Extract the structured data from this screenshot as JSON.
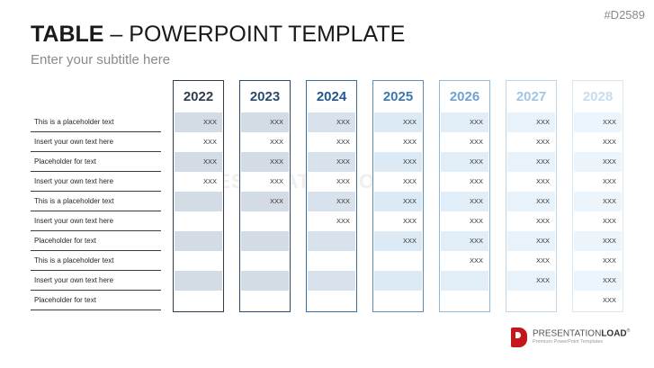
{
  "slide_id": "#D2589",
  "title_bold": "TABLE",
  "title_rest": " – POWERPOINT TEMPLATE",
  "subtitle": "Enter your subtitle here",
  "row_labels": [
    "This is a placeholder text",
    "Insert your own text here",
    "Placeholder for text",
    "Insert your own text here",
    "This is a placeholder text",
    "Insert your own text here",
    "Placeholder for text",
    "This is a placeholder text",
    "Insert your own text here",
    "Placeholder for text"
  ],
  "columns": [
    {
      "year": "2022",
      "year_color": "#2f3d4e",
      "border": "#2f3d4e",
      "shade": "#d3dbe4",
      "cells": [
        "XXX",
        "XXX",
        "XXX",
        "XXX",
        "",
        "",
        "",
        "",
        "",
        ""
      ]
    },
    {
      "year": "2023",
      "year_color": "#2b4a6e",
      "border": "#2b4a6e",
      "shade": "#d3dbe4",
      "cells": [
        "XXX",
        "XXX",
        "XXX",
        "XXX",
        "XXX",
        "",
        "",
        "",
        "",
        ""
      ]
    },
    {
      "year": "2024",
      "year_color": "#24578d",
      "border": "#3c6e9d",
      "shade": "#d7e2ec",
      "cells": [
        "XXX",
        "XXX",
        "XXX",
        "XXX",
        "XXX",
        "XXX",
        "",
        "",
        "",
        ""
      ]
    },
    {
      "year": "2025",
      "year_color": "#3d78ad",
      "border": "#5b8fbd",
      "shade": "#dceaf5",
      "cells": [
        "XXX",
        "XXX",
        "XXX",
        "XXX",
        "XXX",
        "XXX",
        "XXX",
        "",
        "",
        ""
      ]
    },
    {
      "year": "2026",
      "year_color": "#6fa2cf",
      "border": "#8cb8de",
      "shade": "#e1eef8",
      "cells": [
        "XXX",
        "XXX",
        "XXX",
        "XXX",
        "XXX",
        "XXX",
        "XXX",
        "XXX",
        "",
        ""
      ]
    },
    {
      "year": "2027",
      "year_color": "#a3c5e3",
      "border": "#bad7ee",
      "shade": "#e7f2fa",
      "cells": [
        "XXX",
        "XXX",
        "XXX",
        "XXX",
        "XXX",
        "XXX",
        "XXX",
        "XXX",
        "XXX",
        ""
      ]
    },
    {
      "year": "2028",
      "year_color": "#c6dcef",
      "border": "#d6e6f3",
      "shade": "#ecf5fb",
      "cells": [
        "XXX",
        "XXX",
        "XXX",
        "XXX",
        "XXX",
        "XXX",
        "XXX",
        "XXX",
        "XXX",
        "XXX"
      ]
    }
  ],
  "watermark": "PRESENTATIONLOAD",
  "logo": {
    "name_a": "PRESENTATION",
    "name_b": "LOAD",
    "registered": "®",
    "tagline": "Premium PowerPoint Templates",
    "color": "#c4161c"
  }
}
